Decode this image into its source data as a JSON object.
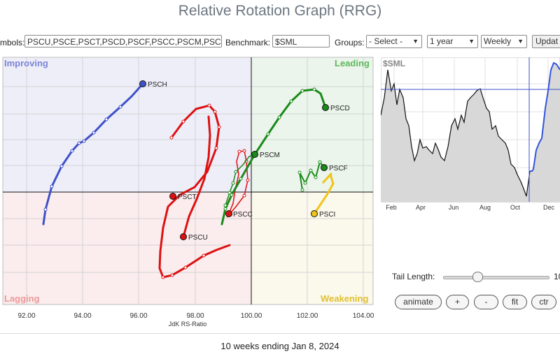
{
  "title": "Relative Rotation Graph (RRG)",
  "toolbar": {
    "symbols_label": "mbols:",
    "symbols_value": "PSCU,PSCE,PSCT,PSCD,PSCF,PSCC,PSCM,PSC(",
    "benchmark_label": "Benchmark:",
    "benchmark_value": "$SML",
    "groups_label": "Groups:",
    "groups_value": "- Select -",
    "period_value": "1 year",
    "frequency_value": "Weekly",
    "update_label": "Updat"
  },
  "quadrants": {
    "improving": "Improving",
    "leading": "Leading",
    "lagging": "Lagging",
    "weakening": "Weakening"
  },
  "axis": {
    "xlabel": "JdK RS-Ratio",
    "xticks": [
      "92.00",
      "94.00",
      "96.00",
      "98.00",
      "100.00",
      "102.00",
      "104.00"
    ]
  },
  "symbols": [
    {
      "name": "PSCH",
      "color": "#3f51c8"
    },
    {
      "name": "PSCD",
      "color": "#1a8a1a"
    },
    {
      "name": "PSCM",
      "color": "#1a8a1a"
    },
    {
      "name": "PSCF",
      "color": "#1a8a1a"
    },
    {
      "name": "PSCT",
      "color": "#dd1111"
    },
    {
      "name": "PSCC",
      "color": "#dd1111"
    },
    {
      "name": "PSCU",
      "color": "#dd1111"
    },
    {
      "name": "PSCI",
      "color": "#f0c419"
    }
  ],
  "benchmark_chart": {
    "symbol": "$SML",
    "months": [
      "Feb",
      "Apr",
      "Jun",
      "Aug",
      "Oct",
      "Dec"
    ]
  },
  "controls": {
    "tail_length_label": "Tail Length:",
    "tail_length_value": "10",
    "animate": "animate",
    "plus": "+",
    "minus": "-",
    "fit": "fit",
    "ctr": "ctr"
  },
  "footer": "10 weeks ending Jan 8, 2024"
}
